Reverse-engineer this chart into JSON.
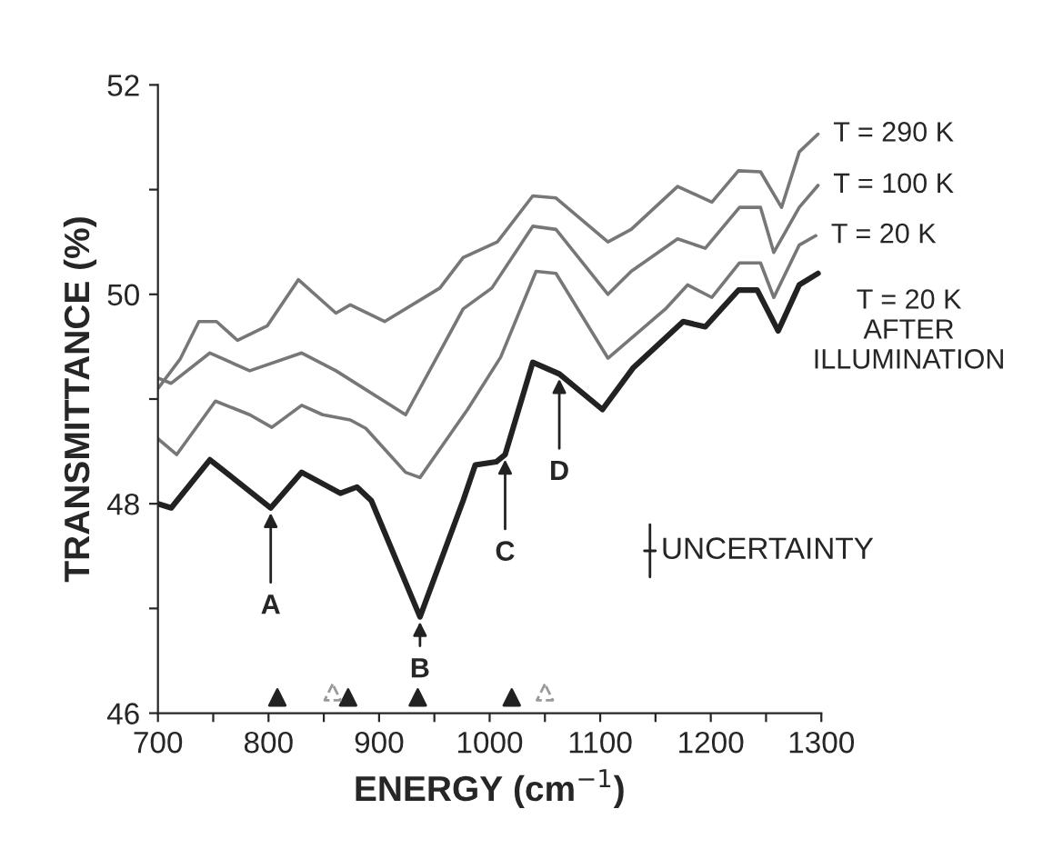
{
  "chart_data": {
    "type": "line",
    "xlabel": "ENERGY (cm$^{−1}$)",
    "ylabel": "TRANSMITTANCE (%)",
    "xlim": [
      700,
      1300
    ],
    "ylim": [
      46,
      52
    ],
    "xticks": [
      700,
      {
        "value": 750,
        "label": null
      },
      800,
      {
        "value": 850,
        "label": null
      },
      900,
      {
        "value": 950,
        "label": null
      },
      1000,
      {
        "value": 1050,
        "label": null
      },
      1100,
      {
        "value": 1150,
        "label": null
      },
      1200,
      {
        "value": 1250,
        "label": null
      },
      1300
    ],
    "yticks": [
      46,
      {
        "value": 47,
        "label": null
      },
      48,
      {
        "value": 49,
        "label": null
      },
      50,
      {
        "value": 51,
        "label": null
      },
      52
    ],
    "grid": false,
    "legend": false,
    "series": [
      {
        "name": "T = 290 K",
        "color": "#777777",
        "x": [
          700,
          720,
          737,
          753,
          772,
          799,
          827,
          861,
          874,
          905,
          955,
          976,
          1007,
          1039,
          1060,
          1107,
          1128,
          1170,
          1201,
          1225,
          1245,
          1264,
          1280,
          1297
        ],
        "values": [
          49.1,
          49.38,
          49.74,
          49.74,
          49.56,
          49.7,
          50.14,
          49.82,
          49.9,
          49.74,
          50.06,
          50.35,
          50.5,
          50.94,
          50.92,
          50.5,
          50.62,
          51.03,
          50.88,
          51.18,
          51.17,
          50.83,
          51.36,
          51.53
        ]
      },
      {
        "name": "T = 100 K",
        "color": "#777777",
        "x": [
          700,
          712,
          747,
          783,
          830,
          861,
          924,
          976,
          1002,
          1039,
          1060,
          1107,
          1128,
          1170,
          1195,
          1226,
          1245,
          1257,
          1280,
          1297
        ],
        "values": [
          49.2,
          49.15,
          49.44,
          49.27,
          49.44,
          49.27,
          48.85,
          49.86,
          50.06,
          50.65,
          50.62,
          50.0,
          50.22,
          50.53,
          50.44,
          50.83,
          50.83,
          50.4,
          50.83,
          51.04
        ]
      },
      {
        "name": "T = 20 K",
        "color": "#777777",
        "x": [
          700,
          717,
          752,
          783,
          803,
          830,
          849,
          874,
          888,
          924,
          937,
          980,
          1010,
          1042,
          1060,
          1107,
          1159,
          1179,
          1201,
          1226,
          1245,
          1257,
          1280,
          1295
        ],
        "values": [
          48.62,
          48.47,
          48.98,
          48.85,
          48.73,
          48.94,
          48.85,
          48.8,
          48.72,
          48.3,
          48.25,
          48.9,
          49.4,
          50.22,
          50.2,
          49.39,
          49.86,
          50.09,
          49.97,
          50.3,
          50.3,
          49.97,
          50.47,
          50.56
        ]
      },
      {
        "name": "T = 20 K\nAFTER\nILLUMINATION",
        "color": "#222222",
        "x": [
          700,
          712,
          747,
          802,
          830,
          865,
          880,
          893,
          937,
          976,
          987,
          1006,
          1014,
          1039,
          1063,
          1102,
          1130,
          1175,
          1195,
          1225,
          1242,
          1261,
          1280,
          1297
        ],
        "values": [
          48.0,
          47.96,
          48.42,
          47.96,
          48.3,
          48.1,
          48.16,
          48.03,
          46.92,
          48.03,
          48.37,
          48.4,
          48.47,
          49.35,
          49.24,
          48.9,
          49.3,
          49.74,
          49.69,
          50.04,
          50.04,
          49.65,
          50.09,
          50.2
        ]
      },
      {
        "type": "scatter",
        "marker": "triangle",
        "color": "#222222",
        "x": [
          808,
          872,
          935,
          1020
        ],
        "values": [
          46.15,
          46.15,
          46.15,
          46.15
        ]
      },
      {
        "type": "scatter",
        "marker": "triangle",
        "color": "#999999",
        "line_style": "dashed",
        "x": [
          858,
          1050
        ],
        "values": [
          46.2,
          46.2
        ]
      }
    ],
    "annotations": [
      {
        "text": "A",
        "x": 802,
        "y": 47.96
      },
      {
        "text": "B",
        "x": 937,
        "y": 46.92
      },
      {
        "text": "C",
        "x": 1014,
        "y": 48.47
      },
      {
        "text": "D",
        "x": 1063,
        "y": 49.24
      },
      "UNCERTAINTY"
    ]
  }
}
